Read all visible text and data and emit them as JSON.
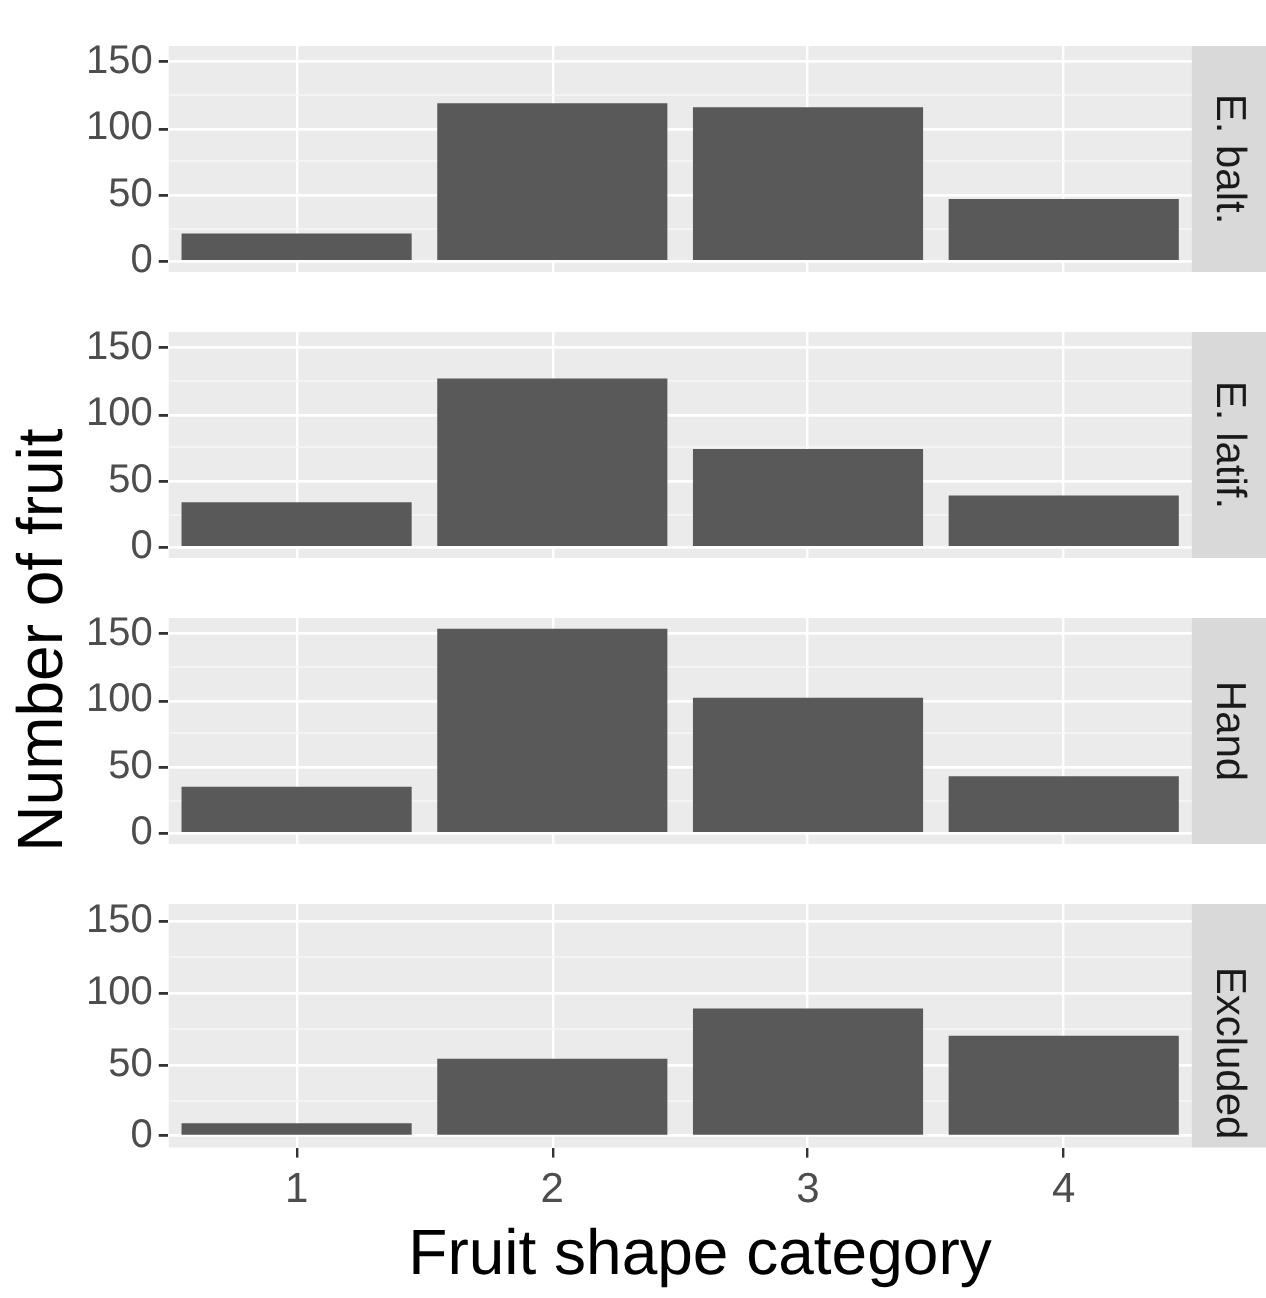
{
  "chart_data": [
    {
      "type": "bar",
      "title": "E. balt.",
      "ylabel": "Number of fruit",
      "categories": [
        "1",
        "2",
        "3",
        "4"
      ],
      "values": [
        21,
        119,
        116,
        47
      ],
      "color": "#595959",
      "ylim": [
        -8,
        162
      ],
      "yticks": [
        0,
        {
          "value": 25,
          "label": null
        },
        50,
        {
          "value": 75,
          "label": null
        },
        100,
        {
          "value": 125,
          "label": null
        },
        150
      ],
      "grid": true,
      "tick_labels": "y"
    },
    {
      "type": "bar",
      "title": "E. latif.",
      "categories": [
        "1",
        "2",
        "3",
        "4"
      ],
      "values": [
        34,
        127,
        74,
        39
      ],
      "color": "#595959",
      "ylim": [
        -8,
        162
      ],
      "yticks": [
        0,
        {
          "value": 25,
          "label": null
        },
        50,
        {
          "value": 75,
          "label": null
        },
        100,
        {
          "value": 125,
          "label": null
        },
        150
      ],
      "grid": true,
      "tick_labels": "y"
    },
    {
      "type": "bar",
      "title": "Hand",
      "categories": [
        "1",
        "2",
        "3",
        "4"
      ],
      "values": [
        35,
        154,
        102,
        43
      ],
      "color": "#595959",
      "ylim": [
        -8,
        162
      ],
      "yticks": [
        0,
        {
          "value": 25,
          "label": null
        },
        50,
        {
          "value": 75,
          "label": null
        },
        100,
        {
          "value": 125,
          "label": null
        },
        150
      ],
      "grid": true,
      "tick_labels": "y"
    },
    {
      "type": "bar",
      "title": "Excluded",
      "xlabel": "Fruit shape category",
      "categories": [
        "1",
        "2",
        "3",
        "4"
      ],
      "values": [
        9,
        54,
        89,
        70
      ],
      "color": "#595959",
      "ylim": [
        -8,
        162
      ],
      "yticks": [
        0,
        {
          "value": 25,
          "label": null
        },
        50,
        {
          "value": 75,
          "label": null
        },
        100,
        {
          "value": 125,
          "label": null
        },
        150
      ],
      "grid": true
    }
  ]
}
